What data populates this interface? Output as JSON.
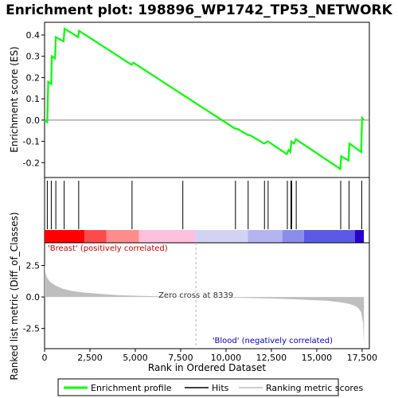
{
  "chart_data": {
    "type": "line",
    "title": "Enrichment plot: 198896_WP1742_TP53_NETWORK",
    "colors": {
      "profile": "#00ff00",
      "hits": "#000000",
      "metric_fill": "#bebebe",
      "zero_line": "#808080",
      "dashed_line": "#b0b0b0",
      "positive_label": "#cc0000",
      "negative_label": "#0000cc"
    },
    "xlim": [
      0,
      17900
    ],
    "x_ticks": [
      0,
      2500,
      5000,
      7500,
      10000,
      12500,
      15000,
      17500
    ],
    "x_tick_labels": [
      "0",
      "2,500",
      "5,000",
      "7,500",
      "10,000",
      "12,500",
      "15,000",
      "17,500"
    ],
    "xlabel": "Rank in Ordered Dataset",
    "es_panel": {
      "ylabel": "Enrichment score (ES)",
      "ylim": [
        -0.27,
        0.46
      ],
      "y_ticks": [
        -0.2,
        -0.1,
        0.0,
        0.1,
        0.2,
        0.3,
        0.4
      ],
      "y_tick_labels": [
        "-0.2",
        "-0.1",
        "0.0",
        "0.1",
        "0.2",
        "0.3",
        "0.4"
      ],
      "profile": [
        [
          0,
          0.0
        ],
        [
          150,
          -0.01
        ],
        [
          200,
          0.18
        ],
        [
          370,
          0.17
        ],
        [
          400,
          0.3
        ],
        [
          580,
          0.29
        ],
        [
          620,
          0.39
        ],
        [
          1050,
          0.37
        ],
        [
          1100,
          0.43
        ],
        [
          1850,
          0.39
        ],
        [
          1900,
          0.42
        ],
        [
          4800,
          0.26
        ],
        [
          4900,
          0.27
        ],
        [
          7600,
          0.12
        ],
        [
          10500,
          -0.04
        ],
        [
          10600,
          -0.04
        ],
        [
          11200,
          -0.07
        ],
        [
          11300,
          -0.07
        ],
        [
          12100,
          -0.11
        ],
        [
          12300,
          -0.1
        ],
        [
          13350,
          -0.16
        ],
        [
          13450,
          -0.14
        ],
        [
          13550,
          -0.15
        ],
        [
          13600,
          -0.1
        ],
        [
          13750,
          -0.11
        ],
        [
          13850,
          -0.09
        ],
        [
          16300,
          -0.23
        ],
        [
          16350,
          -0.17
        ],
        [
          16750,
          -0.19
        ],
        [
          16800,
          -0.11
        ],
        [
          17450,
          -0.15
        ],
        [
          17500,
          0.01
        ],
        [
          17600,
          0.0
        ]
      ]
    },
    "hits": [
      150,
      370,
      620,
      1080,
      1880,
      4820,
      7620,
      10520,
      11220,
      12120,
      12320,
      13380,
      13580,
      13620,
      13870,
      16320,
      16780,
      17480
    ],
    "rank_colorbar": {
      "segments": [
        {
          "start": 0,
          "end": 2200,
          "color": "#ff0000"
        },
        {
          "start": 2200,
          "end": 3400,
          "color": "#ff4a4a"
        },
        {
          "start": 3400,
          "end": 5200,
          "color": "#ff8c8c"
        },
        {
          "start": 5200,
          "end": 8300,
          "color": "#ffbfdf"
        },
        {
          "start": 8300,
          "end": 11200,
          "color": "#d2d2f5"
        },
        {
          "start": 11200,
          "end": 13100,
          "color": "#b4b4f0"
        },
        {
          "start": 13100,
          "end": 14300,
          "color": "#8c8cec"
        },
        {
          "start": 14300,
          "end": 17100,
          "color": "#5a5ae6"
        },
        {
          "start": 17100,
          "end": 17600,
          "color": "#2800c8"
        }
      ]
    },
    "metric_panel": {
      "ylabel": "Ranked list metric (Diff_of_Classes)",
      "ylim": [
        -4.1,
        4.3
      ],
      "y_ticks": [
        -2.5,
        0.0,
        2.5
      ],
      "y_tick_labels": [
        "-2.5",
        "0.0",
        "2.5"
      ],
      "metric_curve": [
        [
          0,
          2.6
        ],
        [
          50,
          1.9
        ],
        [
          150,
          1.5
        ],
        [
          300,
          1.2
        ],
        [
          600,
          0.9
        ],
        [
          1000,
          0.65
        ],
        [
          1500,
          0.48
        ],
        [
          2000,
          0.38
        ],
        [
          3000,
          0.25
        ],
        [
          4000,
          0.15
        ],
        [
          5000,
          0.1
        ],
        [
          6000,
          0.06
        ],
        [
          7000,
          0.03
        ],
        [
          8339,
          0.0
        ],
        [
          9500,
          -0.03
        ],
        [
          10500,
          -0.06
        ],
        [
          11500,
          -0.09
        ],
        [
          12500,
          -0.12
        ],
        [
          13500,
          -0.17
        ],
        [
          14500,
          -0.23
        ],
        [
          15500,
          -0.3
        ],
        [
          16200,
          -0.4
        ],
        [
          16800,
          -0.55
        ],
        [
          17100,
          -0.7
        ],
        [
          17300,
          -0.9
        ],
        [
          17450,
          -1.2
        ],
        [
          17550,
          -2.0
        ],
        [
          17600,
          -3.9
        ]
      ],
      "zero_cross_label": "Zero cross at 8339",
      "zero_cross_x": 8339,
      "positive_label": "'Breast' (positively correlated)",
      "negative_label": "'Blood' (negatively correlated)"
    },
    "legend": {
      "placement": "bottom",
      "entries": [
        "Enrichment profile",
        "Hits",
        "Ranking metric scores"
      ]
    }
  }
}
